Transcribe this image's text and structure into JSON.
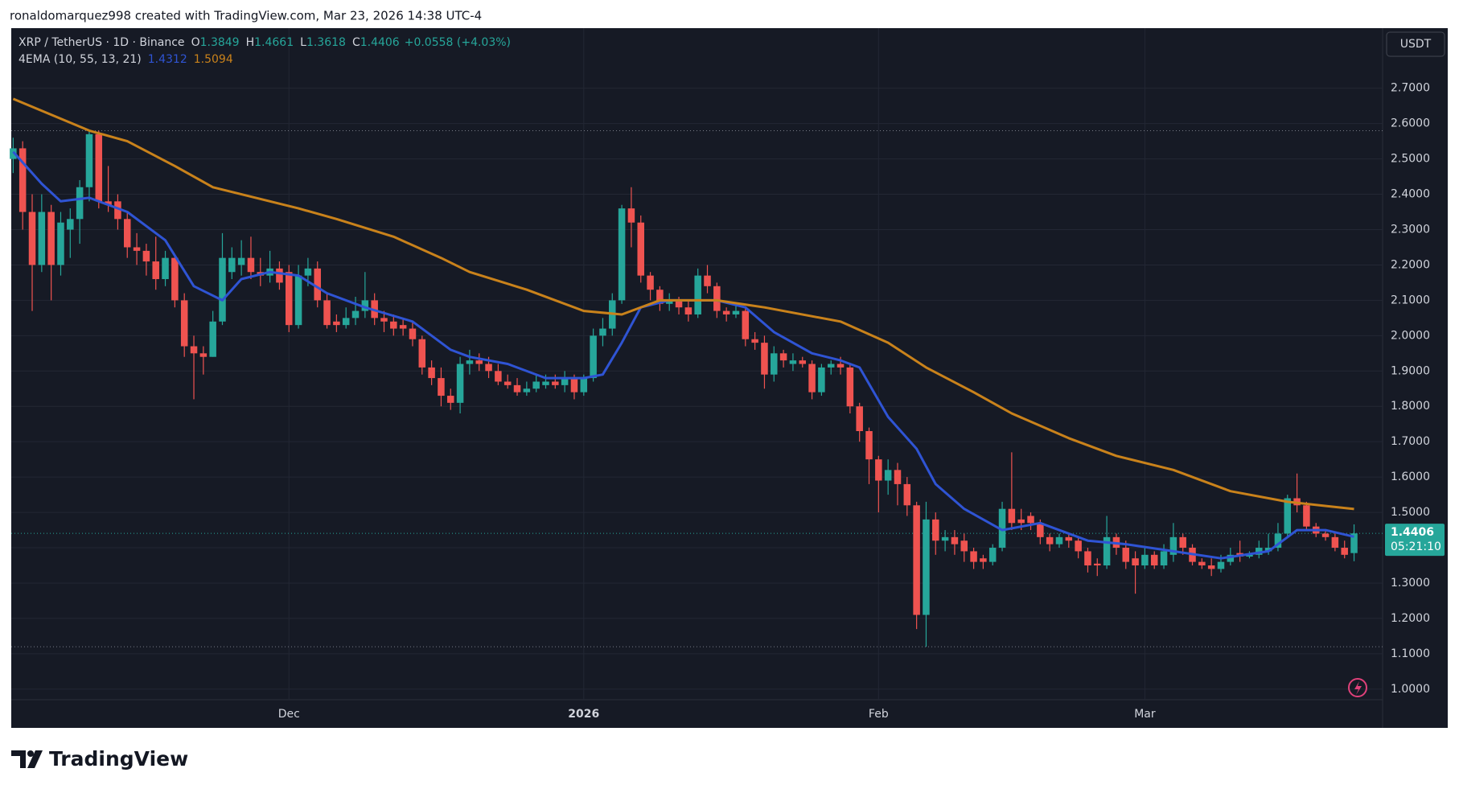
{
  "header": {
    "credit": "ronaldomarquez998 created with TradingView.com, Mar 23, 2026 14:38 UTC-4"
  },
  "footer": {
    "brand": "TradingView"
  },
  "chart_data": {
    "type": "candlestick",
    "symbol": "XRP / TetherUS · 1D · Binance",
    "ohlc_keys": [
      "O",
      "H",
      "L",
      "C"
    ],
    "change": "+0.0558 (+4.03%)",
    "indicator": "4EMA (10, 55, 13, 21)",
    "currency": "USDT",
    "countdown": "05:21:10",
    "up_color": "#26a69a",
    "down_color": "#ef5350",
    "open": [
      2.5,
      2.53,
      2.35,
      2.2,
      2.35,
      2.2,
      2.3,
      2.33,
      2.42,
      2.57,
      2.38,
      2.38,
      2.33,
      2.25,
      2.24,
      2.21,
      2.16,
      2.22,
      2.1,
      1.97,
      1.95,
      1.94,
      2.04,
      2.18,
      2.2,
      2.22,
      2.18,
      2.17,
      2.19,
      2.18,
      2.03,
      2.17,
      2.19,
      2.1,
      2.04,
      2.03,
      2.05,
      2.07,
      2.1,
      2.05,
      2.04,
      2.03,
      2.02,
      1.99,
      1.91,
      1.88,
      1.83,
      1.81,
      1.92,
      1.93,
      1.92,
      1.9,
      1.87,
      1.86,
      1.84,
      1.85,
      1.86,
      1.87,
      1.86,
      1.88,
      1.84,
      1.88,
      2.0,
      2.02,
      2.1,
      2.36,
      2.32,
      2.17,
      2.13,
      2.09,
      2.1,
      2.08,
      2.06,
      2.17,
      2.14,
      2.07,
      2.06,
      2.07,
      1.99,
      1.98,
      1.89,
      1.95,
      1.92,
      1.93,
      1.92,
      1.84,
      1.91,
      1.92,
      1.91,
      1.8,
      1.73,
      1.65,
      1.59,
      1.62,
      1.58,
      1.52,
      1.21,
      1.48,
      1.42,
      1.43,
      1.42,
      1.39,
      1.37,
      1.36,
      1.4,
      1.51,
      1.48,
      1.49,
      1.47,
      1.43,
      1.41,
      1.43,
      1.42,
      1.39,
      1.355,
      1.35,
      1.43,
      1.4,
      1.37,
      1.35,
      1.38,
      1.35,
      1.38,
      1.43,
      1.4,
      1.36,
      1.35,
      1.34,
      1.36,
      1.385,
      1.375,
      1.38,
      1.39,
      1.4,
      1.44,
      1.54,
      1.52,
      1.46,
      1.44,
      1.43,
      1.4,
      1.3849
    ],
    "high": [
      2.56,
      2.55,
      2.4,
      2.4,
      2.37,
      2.35,
      2.36,
      2.44,
      2.58,
      2.58,
      2.48,
      2.4,
      2.35,
      2.29,
      2.26,
      2.28,
      2.24,
      2.23,
      2.12,
      2.0,
      1.97,
      2.07,
      2.29,
      2.25,
      2.27,
      2.28,
      2.22,
      2.24,
      2.21,
      2.2,
      2.2,
      2.22,
      2.21,
      2.12,
      2.06,
      2.08,
      2.11,
      2.18,
      2.12,
      2.07,
      2.06,
      2.05,
      2.04,
      2.0,
      1.93,
      1.91,
      1.85,
      1.94,
      1.96,
      1.95,
      1.94,
      1.92,
      1.89,
      1.88,
      1.87,
      1.89,
      1.89,
      1.89,
      1.9,
      1.89,
      1.89,
      2.02,
      2.05,
      2.12,
      2.37,
      2.42,
      2.34,
      2.18,
      2.14,
      2.12,
      2.11,
      2.1,
      2.19,
      2.2,
      2.15,
      2.08,
      2.09,
      2.08,
      2.01,
      2.0,
      1.97,
      1.96,
      1.95,
      1.94,
      1.93,
      1.92,
      1.93,
      1.94,
      1.92,
      1.81,
      1.74,
      1.66,
      1.65,
      1.64,
      1.6,
      1.53,
      1.53,
      1.5,
      1.45,
      1.45,
      1.44,
      1.4,
      1.38,
      1.41,
      1.53,
      1.67,
      1.51,
      1.5,
      1.48,
      1.44,
      1.44,
      1.44,
      1.43,
      1.4,
      1.37,
      1.49,
      1.44,
      1.42,
      1.39,
      1.4,
      1.39,
      1.41,
      1.47,
      1.44,
      1.41,
      1.37,
      1.37,
      1.38,
      1.4,
      1.42,
      1.39,
      1.42,
      1.44,
      1.47,
      1.55,
      1.61,
      1.53,
      1.47,
      1.45,
      1.44,
      1.42,
      1.4661
    ],
    "low": [
      2.46,
      2.3,
      2.07,
      2.18,
      2.1,
      2.17,
      2.22,
      2.26,
      2.38,
      2.36,
      2.35,
      2.3,
      2.22,
      2.2,
      2.17,
      2.13,
      2.14,
      2.08,
      1.94,
      1.82,
      1.89,
      1.94,
      2.03,
      2.16,
      2.17,
      2.16,
      2.14,
      2.15,
      2.13,
      2.01,
      2.02,
      2.14,
      2.08,
      2.02,
      2.01,
      2.02,
      2.03,
      2.05,
      2.03,
      2.01,
      2.0,
      2.0,
      1.97,
      1.89,
      1.86,
      1.8,
      1.79,
      1.78,
      1.89,
      1.9,
      1.88,
      1.86,
      1.85,
      1.83,
      1.83,
      1.84,
      1.85,
      1.85,
      1.84,
      1.82,
      1.83,
      1.87,
      1.97,
      2.0,
      2.09,
      2.25,
      2.15,
      2.1,
      2.07,
      2.07,
      2.06,
      2.04,
      2.05,
      2.12,
      2.05,
      2.04,
      2.05,
      1.97,
      1.96,
      1.85,
      1.87,
      1.91,
      1.9,
      1.91,
      1.82,
      1.83,
      1.89,
      1.89,
      1.78,
      1.7,
      1.58,
      1.5,
      1.55,
      1.52,
      1.49,
      1.17,
      1.12,
      1.38,
      1.39,
      1.38,
      1.36,
      1.34,
      1.34,
      1.35,
      1.39,
      1.45,
      1.45,
      1.45,
      1.41,
      1.39,
      1.4,
      1.4,
      1.37,
      1.33,
      1.32,
      1.34,
      1.38,
      1.34,
      1.27,
      1.34,
      1.34,
      1.34,
      1.36,
      1.38,
      1.35,
      1.34,
      1.32,
      1.33,
      1.35,
      1.36,
      1.37,
      1.37,
      1.38,
      1.39,
      1.43,
      1.5,
      1.45,
      1.43,
      1.42,
      1.39,
      1.37,
      1.3618
    ],
    "close": [
      2.53,
      2.35,
      2.2,
      2.35,
      2.2,
      2.32,
      2.33,
      2.42,
      2.57,
      2.38,
      2.37,
      2.33,
      2.25,
      2.24,
      2.21,
      2.16,
      2.22,
      2.1,
      1.97,
      1.95,
      1.94,
      2.04,
      2.22,
      2.22,
      2.22,
      2.18,
      2.17,
      2.19,
      2.15,
      2.03,
      2.17,
      2.19,
      2.1,
      2.03,
      2.03,
      2.05,
      2.07,
      2.1,
      2.05,
      2.04,
      2.02,
      2.02,
      1.99,
      1.91,
      1.88,
      1.83,
      1.81,
      1.92,
      1.93,
      1.92,
      1.9,
      1.87,
      1.86,
      1.84,
      1.85,
      1.87,
      1.87,
      1.86,
      1.88,
      1.84,
      1.88,
      2.0,
      2.02,
      2.1,
      2.36,
      2.32,
      2.17,
      2.13,
      2.09,
      2.1,
      2.08,
      2.06,
      2.17,
      2.14,
      2.07,
      2.06,
      2.07,
      1.99,
      1.98,
      1.89,
      1.95,
      1.93,
      1.93,
      1.92,
      1.84,
      1.91,
      1.92,
      1.91,
      1.8,
      1.73,
      1.65,
      1.59,
      1.62,
      1.58,
      1.52,
      1.21,
      1.48,
      1.42,
      1.43,
      1.41,
      1.39,
      1.36,
      1.36,
      1.4,
      1.51,
      1.47,
      1.47,
      1.47,
      1.43,
      1.41,
      1.43,
      1.42,
      1.39,
      1.35,
      1.35,
      1.43,
      1.4,
      1.36,
      1.35,
      1.38,
      1.35,
      1.39,
      1.43,
      1.4,
      1.36,
      1.35,
      1.34,
      1.36,
      1.38,
      1.375,
      1.38,
      1.4,
      1.4,
      1.44,
      1.54,
      1.52,
      1.46,
      1.44,
      1.43,
      1.4,
      1.38,
      1.4406
    ],
    "lines": [
      {
        "color": "#2f54d4",
        "x": [
          0,
          3,
          5,
          8,
          12,
          16,
          19,
          22,
          24,
          27,
          30,
          33,
          37,
          42,
          46,
          48,
          52,
          56,
          60,
          62,
          64,
          66,
          69,
          74,
          77,
          80,
          84,
          87,
          89,
          92,
          95,
          97,
          100,
          104,
          108,
          113,
          117,
          122,
          127,
          132,
          135,
          138,
          141
        ],
        "values": [
          2.52,
          2.43,
          2.38,
          2.39,
          2.35,
          2.27,
          2.14,
          2.1,
          2.16,
          2.18,
          2.17,
          2.12,
          2.08,
          2.04,
          1.96,
          1.94,
          1.92,
          1.88,
          1.88,
          1.89,
          1.98,
          2.08,
          2.1,
          2.1,
          2.08,
          2.01,
          1.95,
          1.93,
          1.91,
          1.77,
          1.68,
          1.58,
          1.51,
          1.45,
          1.47,
          1.42,
          1.41,
          1.39,
          1.37,
          1.39,
          1.45,
          1.45,
          1.4312
        ]
      },
      {
        "color": "#c9821b",
        "x": [
          0,
          8,
          12,
          17,
          21,
          27,
          30,
          34,
          40,
          45,
          48,
          54,
          60,
          64,
          68,
          74,
          79,
          87,
          92,
          96,
          101,
          105,
          111,
          116,
          122,
          128,
          134,
          141
        ],
        "values": [
          2.67,
          2.58,
          2.55,
          2.48,
          2.42,
          2.38,
          2.36,
          2.33,
          2.28,
          2.22,
          2.18,
          2.13,
          2.07,
          2.06,
          2.1,
          2.1,
          2.08,
          2.04,
          1.98,
          1.91,
          1.84,
          1.78,
          1.71,
          1.66,
          1.62,
          1.56,
          1.53,
          1.5094
        ]
      }
    ],
    "xlim": [
      -0.2,
      144
    ],
    "xticks": [
      {
        "value": 29,
        "label": "Dec"
      },
      {
        "value": 60,
        "label": "2026"
      },
      {
        "value": 91,
        "label": "Feb"
      },
      {
        "value": 119,
        "label": "Mar"
      }
    ],
    "ylim": [
      0.97,
      2.87
    ],
    "yticks": [
      {
        "value": 1,
        "label": "1.0000"
      },
      {
        "value": 1.1,
        "label": "1.1000"
      },
      {
        "value": 1.2,
        "label": "1.2000"
      },
      {
        "value": 1.3,
        "label": "1.3000"
      },
      {
        "value": 1.4,
        "label": "1.4000"
      },
      {
        "value": 1.5,
        "label": "1.5000"
      },
      {
        "value": 1.6,
        "label": "1.6000"
      },
      {
        "value": 1.7,
        "label": "1.7000"
      },
      {
        "value": 1.8,
        "label": "1.8000"
      },
      {
        "value": 1.9,
        "label": "1.9000"
      },
      {
        "value": 2,
        "label": "2.0000"
      },
      {
        "value": 2.1,
        "label": "2.1000"
      },
      {
        "value": 2.2,
        "label": "2.2000"
      },
      {
        "value": 2.3,
        "label": "2.3000"
      },
      {
        "value": 2.4,
        "label": "2.4000"
      },
      {
        "value": 2.5,
        "label": "2.5000"
      },
      {
        "value": 2.6,
        "label": "2.6000"
      },
      {
        "value": 2.7,
        "label": "2.7000"
      }
    ],
    "grid": true
  }
}
